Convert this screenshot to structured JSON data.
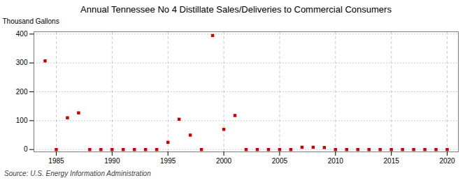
{
  "chart_data": {
    "type": "scatter",
    "title": "Annual Tennessee No 4 Distillate Sales/Deliveries to Commercial Consumers",
    "ylabel": "Thousand Gallons",
    "caption": "Source: U.S. Energy Information Administration",
    "x": [
      1984,
      1985,
      1986,
      1987,
      1988,
      1989,
      1990,
      1991,
      1992,
      1993,
      1994,
      1995,
      1996,
      1997,
      1998,
      1999,
      2000,
      2001,
      2002,
      2003,
      2004,
      2005,
      2006,
      2007,
      2008,
      2009,
      2010,
      2011,
      2012,
      2013,
      2014,
      2015,
      2016,
      2017,
      2018,
      2019,
      2020
    ],
    "values": [
      307,
      0,
      110,
      127,
      0,
      0,
      0,
      0,
      0,
      0,
      0,
      25,
      105,
      50,
      0,
      395,
      70,
      118,
      0,
      0,
      0,
      0,
      0,
      8,
      8,
      7,
      0,
      0,
      0,
      0,
      0,
      0,
      0,
      0,
      0,
      0,
      0
    ],
    "color": "#cc0000",
    "marker": "square",
    "xlim": [
      1983,
      2021
    ],
    "ylim": [
      -8,
      408
    ],
    "xticks": [
      1985,
      1990,
      1995,
      2000,
      2005,
      2010,
      2015,
      2020
    ],
    "yticks": [
      0,
      100,
      200,
      300,
      400
    ],
    "grid": true
  }
}
